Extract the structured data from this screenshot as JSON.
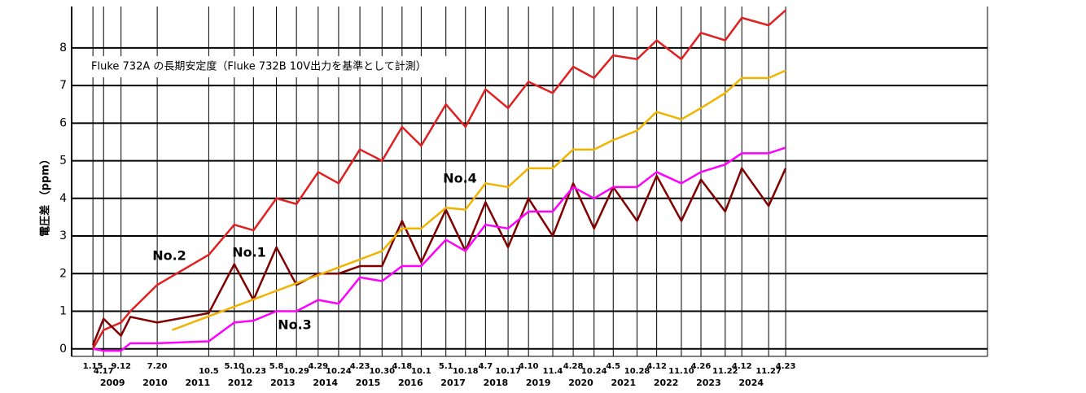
{
  "chart_data": {
    "type": "line",
    "title": "Fluke 732A の長期安定度（Fluke 732B 10V出力を基準として計測）",
    "y_label": "電圧差 （ppm）",
    "x": [
      2009.04,
      2009.29,
      2009.7,
      2009.92,
      2010.55,
      2011.76,
      2012.36,
      2012.81,
      2013.35,
      2013.82,
      2014.33,
      2014.81,
      2015.31,
      2015.83,
      2016.3,
      2016.75,
      2017.33,
      2017.79,
      2018.26,
      2018.79,
      2019.27,
      2019.84,
      2020.32,
      2020.81,
      2021.26,
      2021.82,
      2022.28,
      2022.86,
      2023.32,
      2023.89,
      2024.28,
      2024.91,
      2025.31
    ],
    "series": [
      {
        "name": "No.2",
        "color": "#e02020",
        "values": [
          0,
          0.5,
          0.7,
          1.0,
          1.7,
          2.5,
          3.3,
          3.15,
          4.0,
          3.85,
          4.7,
          4.4,
          5.3,
          5.0,
          5.9,
          5.4,
          6.5,
          5.9,
          6.9,
          6.4,
          7.1,
          6.8,
          7.5,
          7.2,
          7.8,
          7.7,
          8.2,
          7.7,
          8.4,
          8.2,
          8.8,
          8.6,
          9.0
        ]
      },
      {
        "name": "No.1",
        "color": "#800000",
        "values": [
          0.1,
          0.8,
          0.35,
          0.85,
          0.7,
          0.95,
          2.25,
          1.3,
          2.7,
          1.7,
          2.0,
          2.0,
          2.2,
          2.2,
          3.4,
          2.3,
          3.7,
          2.6,
          3.9,
          2.7,
          4.0,
          3.0,
          4.4,
          3.2,
          4.3,
          3.4,
          4.6,
          3.4,
          4.5,
          3.65,
          4.8,
          3.8,
          4.8
        ]
      },
      {
        "name": "No.3",
        "color": "#ff00ff",
        "values": [
          0,
          -0.05,
          -0.05,
          0.15,
          0.15,
          0.2,
          0.7,
          0.75,
          1.0,
          1.0,
          1.3,
          1.2,
          1.9,
          1.8,
          2.2,
          2.2,
          2.9,
          2.6,
          3.3,
          3.2,
          3.65,
          3.65,
          4.3,
          4.0,
          4.3,
          4.3,
          4.7,
          4.4,
          4.7,
          4.9,
          5.2,
          5.2,
          5.35
        ]
      },
      {
        "name": "No.4",
        "color": "#f0b400",
        "x": [
          2010.9,
          2015.83,
          2016.3,
          2016.75,
          2017.33,
          2017.79,
          2018.26,
          2018.79,
          2019.27,
          2019.84,
          2020.32,
          2020.81,
          2021.26,
          2021.82,
          2022.28,
          2022.86,
          2023.32,
          2023.89,
          2024.28,
          2024.91,
          2025.31
        ],
        "values": [
          0.5,
          2.6,
          3.2,
          3.2,
          3.75,
          3.7,
          4.4,
          4.3,
          4.8,
          4.8,
          5.3,
          5.3,
          5.55,
          5.8,
          6.3,
          6.1,
          6.4,
          6.8,
          7.2,
          7.2,
          7.4
        ]
      }
    ],
    "xlim": [
      2008.54,
      2030.05
    ],
    "xticks": [
      {
        "value": 2009.04,
        "label": "1.15"
      },
      {
        "value": 2009.29,
        "label": "4.17"
      },
      {
        "value": 2009.7,
        "label": "9.12"
      },
      {
        "value": 2010.55,
        "label": "7.20"
      },
      {
        "value": 2011.76,
        "label": "10.5"
      },
      {
        "value": 2012.36,
        "label": "5.10"
      },
      {
        "value": 2012.81,
        "label": "10.23"
      },
      {
        "value": 2013.35,
        "label": "5.8"
      },
      {
        "value": 2013.82,
        "label": "10.29"
      },
      {
        "value": 2014.33,
        "label": "4.29"
      },
      {
        "value": 2014.81,
        "label": "10.24"
      },
      {
        "value": 2015.31,
        "label": "4.23"
      },
      {
        "value": 2015.83,
        "label": "10.30"
      },
      {
        "value": 2016.3,
        "label": "4.18"
      },
      {
        "value": 2016.75,
        "label": "10.1"
      },
      {
        "value": 2017.33,
        "label": "5.1"
      },
      {
        "value": 2017.79,
        "label": "10.18"
      },
      {
        "value": 2018.26,
        "label": "4.7"
      },
      {
        "value": 2018.79,
        "label": "10.17"
      },
      {
        "value": 2019.27,
        "label": "4.10"
      },
      {
        "value": 2019.84,
        "label": "11.4"
      },
      {
        "value": 2020.32,
        "label": "4.28"
      },
      {
        "value": 2020.81,
        "label": "10.24"
      },
      {
        "value": 2021.26,
        "label": "4.5"
      },
      {
        "value": 2021.82,
        "label": "10.28"
      },
      {
        "value": 2022.28,
        "label": "4.12"
      },
      {
        "value": 2022.86,
        "label": "11.10"
      },
      {
        "value": 2023.32,
        "label": "4.26"
      },
      {
        "value": 2023.89,
        "label": "11.22"
      },
      {
        "value": 2024.28,
        "label": "4.12"
      },
      {
        "value": 2024.91,
        "label": "11.27"
      },
      {
        "value": 2025.31,
        "label": "4.23"
      }
    ],
    "years": [
      {
        "value": 2009.5,
        "label": "2009"
      },
      {
        "value": 2010.5,
        "label": "2010"
      },
      {
        "value": 2011.5,
        "label": "2011"
      },
      {
        "value": 2012.5,
        "label": "2012"
      },
      {
        "value": 2013.5,
        "label": "2013"
      },
      {
        "value": 2014.5,
        "label": "2014"
      },
      {
        "value": 2015.5,
        "label": "2015"
      },
      {
        "value": 2016.5,
        "label": "2016"
      },
      {
        "value": 2017.5,
        "label": "2017"
      },
      {
        "value": 2018.5,
        "label": "2018"
      },
      {
        "value": 2019.5,
        "label": "2019"
      },
      {
        "value": 2020.5,
        "label": "2020"
      },
      {
        "value": 2021.5,
        "label": "2021"
      },
      {
        "value": 2022.5,
        "label": "2022"
      },
      {
        "value": 2023.5,
        "label": "2023"
      },
      {
        "value": 2024.5,
        "label": "2024"
      }
    ],
    "ylim": [
      -0.2,
      9.1
    ],
    "yticks": [
      0,
      1,
      2,
      3,
      4,
      5,
      6,
      7,
      8
    ],
    "grid": true
  }
}
